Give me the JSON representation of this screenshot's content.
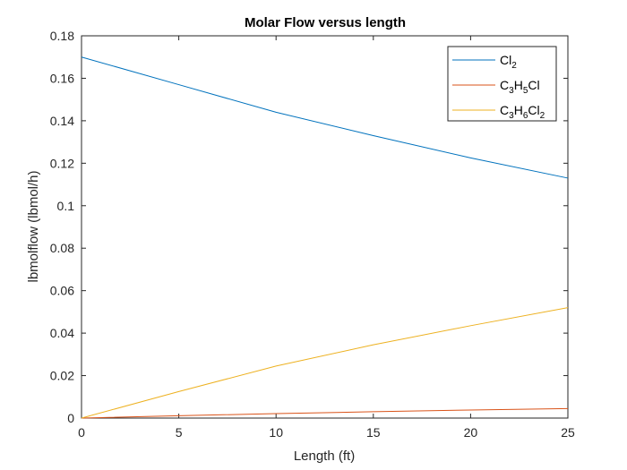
{
  "chart_data": {
    "type": "line",
    "title": "Molar Flow versus length",
    "xlabel": "Length (ft)",
    "ylabel": "lbmolflow (lbmol/h)",
    "xlim": [
      0,
      25
    ],
    "ylim": [
      0,
      0.18
    ],
    "xticks": [
      0,
      5,
      10,
      15,
      20,
      25
    ],
    "xtick_labels": [
      "0",
      "5",
      "10",
      "15",
      "20",
      "25"
    ],
    "yticks": [
      0,
      0.02,
      0.04,
      0.06,
      0.08,
      0.1,
      0.12,
      0.14,
      0.16,
      0.18
    ],
    "ytick_labels": [
      "0",
      "0.02",
      "0.04",
      "0.06",
      "0.08",
      "0.1",
      "0.12",
      "0.14",
      "0.16",
      "0.18"
    ],
    "grid": false,
    "legend_position": "top-right",
    "x": [
      0,
      5,
      10,
      15,
      20,
      25
    ],
    "series": [
      {
        "name": "Cl2",
        "label_parts": [
          {
            "t": "Cl",
            "s": false
          },
          {
            "t": "2",
            "s": true
          }
        ],
        "color": "#0072BD",
        "values": [
          0.17,
          0.157,
          0.144,
          0.133,
          0.1225,
          0.113
        ]
      },
      {
        "name": "C3H5Cl",
        "label_parts": [
          {
            "t": "C",
            "s": false
          },
          {
            "t": "3",
            "s": true
          },
          {
            "t": "H",
            "s": false
          },
          {
            "t": "5",
            "s": true
          },
          {
            "t": "Cl",
            "s": false
          }
        ],
        "color": "#D95319",
        "values": [
          0,
          0.0011,
          0.0021,
          0.003,
          0.0038,
          0.0045
        ]
      },
      {
        "name": "C3H6Cl2",
        "label_parts": [
          {
            "t": "C",
            "s": false
          },
          {
            "t": "3",
            "s": true
          },
          {
            "t": "H",
            "s": false
          },
          {
            "t": "6",
            "s": true
          },
          {
            "t": "Cl",
            "s": false
          },
          {
            "t": "2",
            "s": true
          }
        ],
        "color": "#EDB120",
        "values": [
          0,
          0.0125,
          0.0245,
          0.0345,
          0.0435,
          0.052
        ]
      }
    ]
  }
}
